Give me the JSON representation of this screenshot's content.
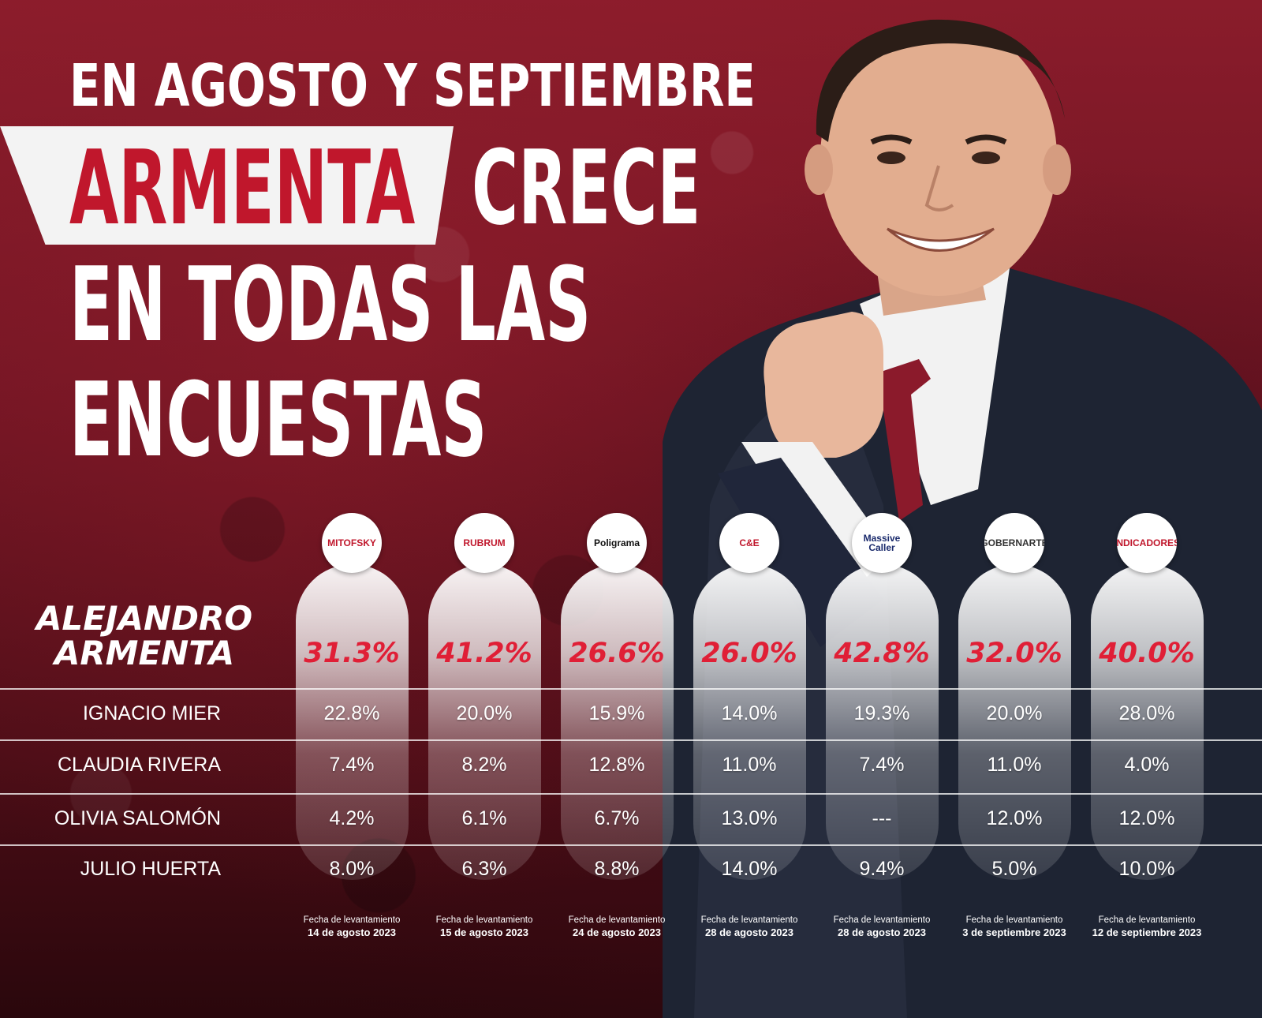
{
  "headline": {
    "line1": "EN AGOSTO Y SEPTIEMBRE",
    "highlight": "ARMENTA",
    "line2_rest": "CRECE",
    "line3": "EN TODAS LAS",
    "line4": "ENCUESTAS"
  },
  "colors": {
    "accent": "#c0172c",
    "lead_value": "#e01f36",
    "background": "#6d1422",
    "text": "#ffffff"
  },
  "chart_data": {
    "type": "table",
    "pollsters": [
      {
        "name": "MITOFSKY",
        "logo_text": "MITOFSKY",
        "date_label": "Fecha de levantamiento",
        "date": "14 de agosto 2023"
      },
      {
        "name": "RUBRUM",
        "logo_text": "RUBRUM",
        "date_label": "Fecha de levantamiento",
        "date": "15 de agosto 2023"
      },
      {
        "name": "Poligrama",
        "logo_text": "Poligrama",
        "date_label": "Fecha de levantamiento",
        "date": "24 de agosto 2023"
      },
      {
        "name": "C&E",
        "logo_text": "C&E",
        "date_label": "Fecha de levantamiento",
        "date": "28 de agosto 2023"
      },
      {
        "name": "Massive Caller",
        "logo_text": "Massive Caller",
        "date_label": "Fecha de levantamiento",
        "date": "28 de agosto 2023"
      },
      {
        "name": "GOBERNARTE",
        "logo_text": "GOBERNARTE",
        "date_label": "Fecha de levantamiento",
        "date": "3 de septiembre 2023"
      },
      {
        "name": "INDICADORES",
        "logo_text": "INDICADORES",
        "date_label": "Fecha de levantamiento",
        "date": "12 de septiembre 2023"
      }
    ],
    "lead_candidate": {
      "name_line1": "ALEJANDRO",
      "name_line2": "ARMENTA",
      "values": [
        "31.3%",
        "41.2%",
        "26.6%",
        "26.0%",
        "42.8%",
        "32.0%",
        "40.0%"
      ]
    },
    "rows": [
      {
        "name": "IGNACIO MIER",
        "values": [
          "22.8%",
          "20.0%",
          "15.9%",
          "14.0%",
          "19.3%",
          "20.0%",
          "28.0%"
        ]
      },
      {
        "name": "CLAUDIA RIVERA",
        "values": [
          "7.4%",
          "8.2%",
          "12.8%",
          "11.0%",
          "7.4%",
          "11.0%",
          "4.0%"
        ]
      },
      {
        "name": "OLIVIA SALOMÓN",
        "values": [
          "4.2%",
          "6.1%",
          "6.7%",
          "13.0%",
          "---",
          "12.0%",
          "12.0%"
        ]
      },
      {
        "name": "JULIO HUERTA",
        "values": [
          "8.0%",
          "6.3%",
          "8.8%",
          "14.0%",
          "9.4%",
          "5.0%",
          "10.0%"
        ]
      }
    ]
  }
}
